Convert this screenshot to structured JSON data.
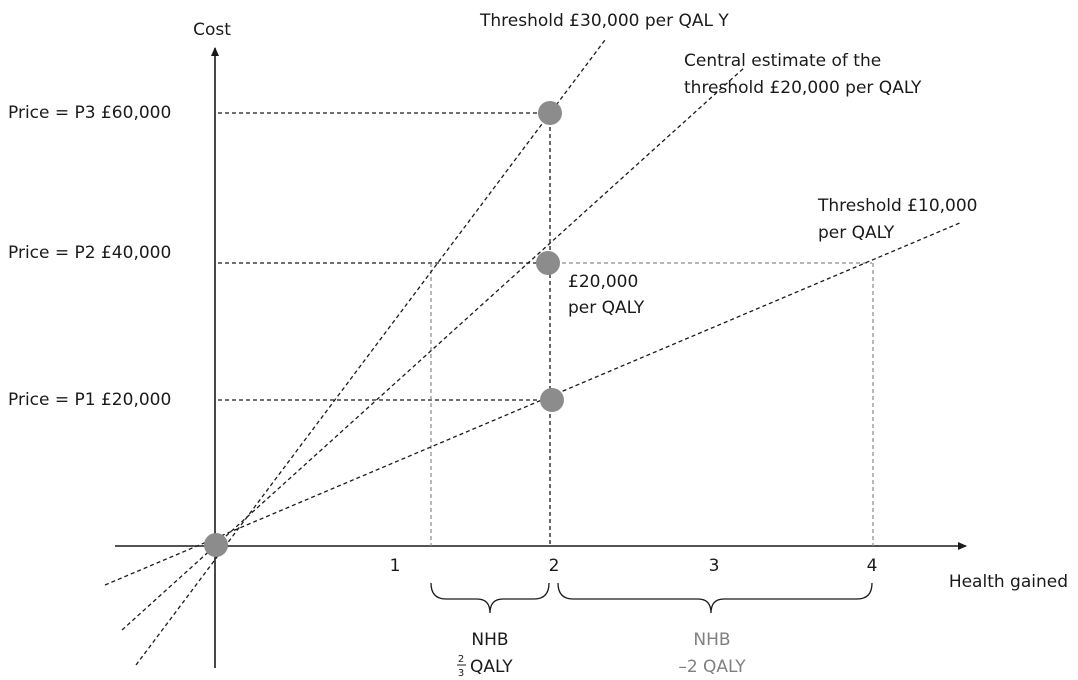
{
  "axes": {
    "y_label": "Cost",
    "x_label": "Health gained",
    "x_ticks": [
      "1",
      "2",
      "3",
      "4"
    ]
  },
  "prices": [
    {
      "label": "Price = P3  £60,000",
      "value": 60000
    },
    {
      "label": "Price = P2  £40,000",
      "value": 40000
    },
    {
      "label": "Price = P1  £20,000",
      "value": 20000
    }
  ],
  "thresholds": {
    "t30": "Threshold £30,000 per QAL Y",
    "t20_line1": "Central estimate of the",
    "t20_line2": "threshold £20,000 per QALY",
    "t10_line1": "Threshold £10,000",
    "t10_line2": "per QALY"
  },
  "point_label": {
    "line1": "£20,000",
    "line2": "per QALY"
  },
  "nhb_left": {
    "title": "NHB",
    "frac_num": "2",
    "frac_den": "3",
    "unit": "QALY"
  },
  "nhb_right": {
    "title": "NHB",
    "value": "–2 QALY"
  },
  "colors": {
    "point": "#8c8c8c",
    "grey_text": "#808080"
  }
}
